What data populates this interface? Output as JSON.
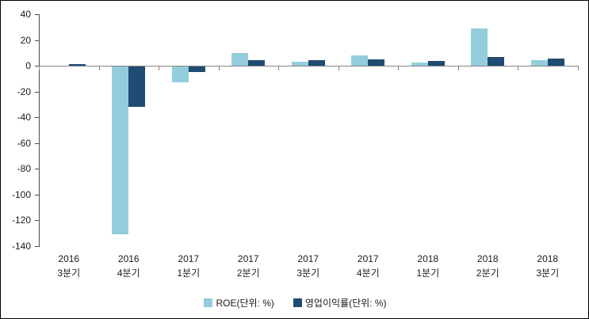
{
  "chart_data": {
    "type": "bar",
    "title": "",
    "xlabel": "",
    "ylabel": "",
    "categories": [
      "2016 3분기",
      "2016 4분기",
      "2017 1분기",
      "2017 2분기",
      "2017 3분기",
      "2017 4분기",
      "2018 1분기",
      "2018 2분기",
      "2018 3분기"
    ],
    "category_lines": [
      [
        "2016",
        "3분기"
      ],
      [
        "2016",
        "4분기"
      ],
      [
        "2017",
        "1분기"
      ],
      [
        "2017",
        "2분기"
      ],
      [
        "2017",
        "3분기"
      ],
      [
        "2017",
        "4분기"
      ],
      [
        "2018",
        "1분기"
      ],
      [
        "2018",
        "2분기"
      ],
      [
        "2018",
        "3분기"
      ]
    ],
    "series": [
      {
        "name": "ROE(단위: %)",
        "color": "#93CDDC",
        "values": [
          0,
          -130,
          -12,
          10,
          3,
          8,
          2.5,
          29,
          4.5
        ]
      },
      {
        "name": "영업이익률(단위: %)",
        "color": "#204B73",
        "values": [
          1,
          -31,
          -4,
          4.5,
          4.5,
          5,
          3.5,
          7,
          5.5
        ]
      }
    ],
    "ylim": [
      -140,
      40
    ],
    "yticks": [
      40,
      20,
      0,
      -20,
      -40,
      -60,
      -80,
      -100,
      -120,
      -140
    ],
    "grid": false,
    "legend_position": "bottom"
  },
  "colors": {
    "axis_line": "#848484",
    "y_axis_line": "#4d4d4d",
    "text": "#1a1a1a",
    "background": "#ffffff",
    "border": "#000000"
  }
}
